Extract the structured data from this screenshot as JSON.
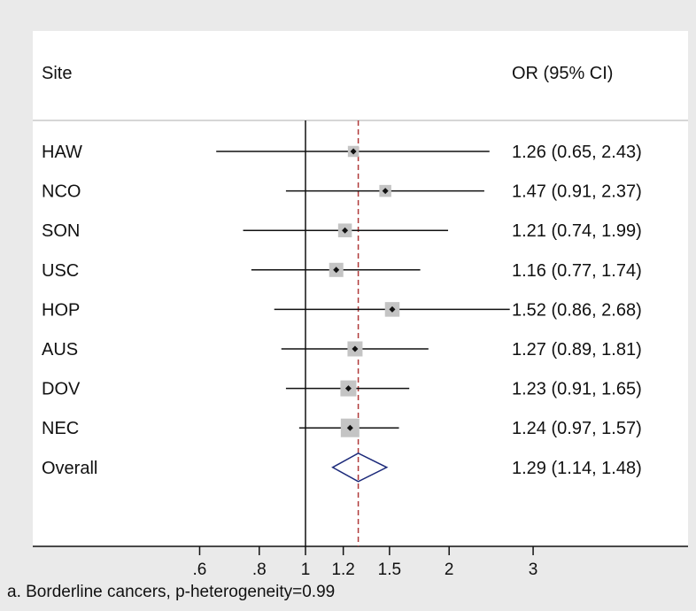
{
  "chart_data": {
    "type": "forest",
    "header": {
      "left": "Site",
      "right": "OR (95% CI)"
    },
    "caption": "a. Borderline cancers, p-heterogeneity=0.99",
    "x_scale": "log",
    "xlim": [
      0.5,
      4.0
    ],
    "x_ticks": [
      {
        "value": 0.6,
        "label": ".6"
      },
      {
        "value": 0.8,
        "label": ".8"
      },
      {
        "value": 1.0,
        "label": "1"
      },
      {
        "value": 1.2,
        "label": "1.2"
      },
      {
        "value": 1.5,
        "label": "1.5"
      },
      {
        "value": 2.0,
        "label": "2"
      },
      {
        "value": 3.0,
        "label": "3"
      }
    ],
    "null_line": 1,
    "pooled_line": 1.29,
    "colors": {
      "box": "#c4c4c4",
      "diamond": "#1c2a7a",
      "ref_line": "#b03a3a",
      "panel": "#ffffff",
      "background": "#eaeaea"
    },
    "studies": [
      {
        "site": "HAW",
        "or": 1.26,
        "lo": 0.65,
        "hi": 2.43,
        "label": "1.26 (0.65, 2.43)",
        "weight": 0.45
      },
      {
        "site": "NCO",
        "or": 1.47,
        "lo": 0.91,
        "hi": 2.37,
        "label": "1.47 (0.91, 2.37)",
        "weight": 0.55
      },
      {
        "site": "SON",
        "or": 1.21,
        "lo": 0.74,
        "hi": 1.99,
        "label": "1.21 (0.74, 1.99)",
        "weight": 0.75
      },
      {
        "site": "USC",
        "or": 1.16,
        "lo": 0.77,
        "hi": 1.74,
        "label": "1.16 (0.77, 1.74)",
        "weight": 0.8
      },
      {
        "site": "HOP",
        "or": 1.52,
        "lo": 0.86,
        "hi": 2.68,
        "label": "1.52 (0.86, 2.68)",
        "weight": 0.85
      },
      {
        "site": "AUS",
        "or": 1.27,
        "lo": 0.89,
        "hi": 1.81,
        "label": "1.27 (0.89, 1.81)",
        "weight": 0.9
      },
      {
        "site": "DOV",
        "or": 1.23,
        "lo": 0.91,
        "hi": 1.65,
        "label": "1.23 (0.91, 1.65)",
        "weight": 1.0
      },
      {
        "site": "NEC",
        "or": 1.24,
        "lo": 0.97,
        "hi": 1.57,
        "label": "1.24 (0.97, 1.57)",
        "weight": 1.3
      }
    ],
    "overall": {
      "site": "Overall",
      "or": 1.29,
      "lo": 1.14,
      "hi": 1.48,
      "label": "1.29 (1.14, 1.48)"
    }
  }
}
